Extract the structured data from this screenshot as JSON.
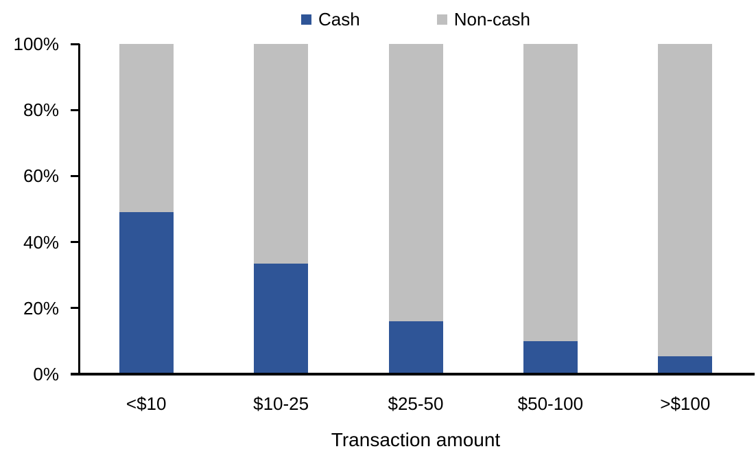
{
  "chart_data": {
    "type": "bar",
    "stacked": true,
    "title": "",
    "categories": [
      "<$10",
      "$10-25",
      "$25-50",
      "$50-100",
      ">$100"
    ],
    "series": [
      {
        "name": "Cash",
        "color": "#2F5597",
        "values": [
          49,
          33.5,
          16,
          10,
          5.5
        ]
      },
      {
        "name": "Non-cash",
        "color": "#BFBFBF",
        "values": [
          51,
          66.5,
          84,
          90,
          94.5
        ]
      }
    ],
    "xlabel": "Transaction amount",
    "ylabel": "",
    "y_ticks": [
      "0%",
      "20%",
      "40%",
      "60%",
      "80%",
      "100%"
    ],
    "ylim": [
      0,
      100
    ],
    "legend_position": "top",
    "grid": false,
    "axis_color": "#000000",
    "background_color": "#FFFFFF"
  }
}
